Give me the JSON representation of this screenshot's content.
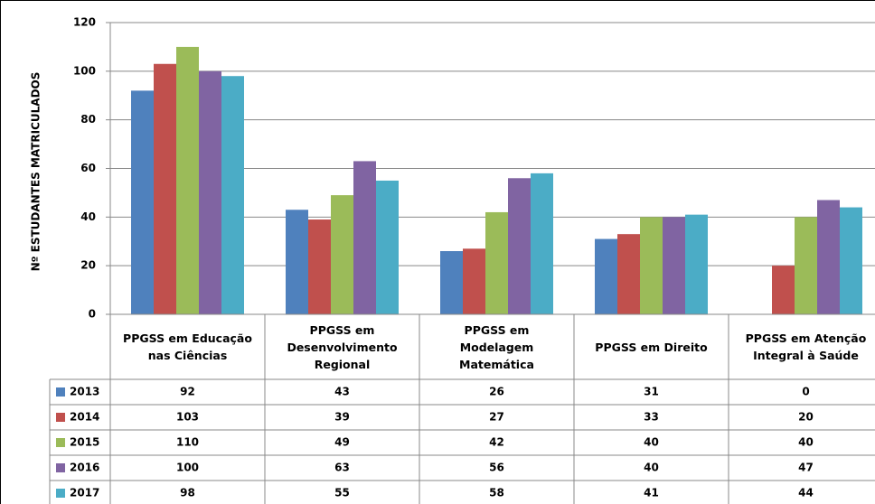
{
  "chart_data": {
    "type": "bar",
    "y_label": "Nº ESTUDANTES MATRICULADOS",
    "categories": [
      "PPGSS em Educação nas Ciências",
      "PPGSS em Desenvolvimento Regional",
      "PPGSS em Modelagem Matemática",
      "PPGSS em Direito",
      "PPGSS em Atenção Integral à Saúde"
    ],
    "series": [
      {
        "name": "2013",
        "color": "#4f81bd",
        "values": [
          92,
          43,
          26,
          31,
          0
        ]
      },
      {
        "name": "2014",
        "color": "#c0504d",
        "values": [
          103,
          39,
          27,
          33,
          20
        ]
      },
      {
        "name": "2015",
        "color": "#9bbb59",
        "values": [
          110,
          49,
          42,
          40,
          40
        ]
      },
      {
        "name": "2016",
        "color": "#8064a2",
        "values": [
          100,
          63,
          56,
          40,
          47
        ]
      },
      {
        "name": "2017",
        "color": "#4bacc6",
        "values": [
          98,
          55,
          58,
          41,
          44
        ]
      }
    ],
    "ylim": [
      0,
      120
    ],
    "yticks": [
      0,
      20,
      40,
      60,
      80,
      100,
      120
    ],
    "grid": true,
    "data_table": true
  }
}
